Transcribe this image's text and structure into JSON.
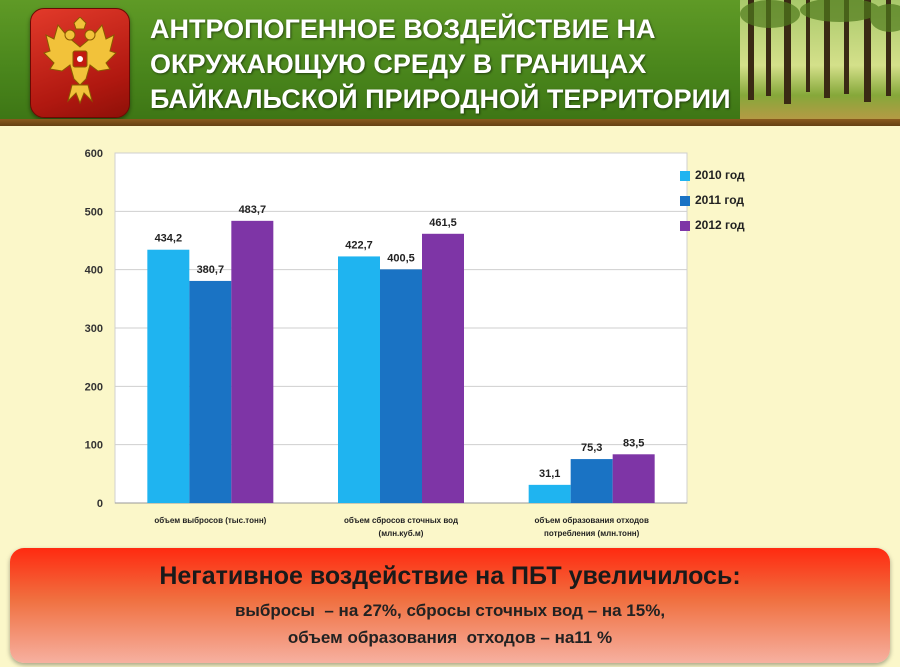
{
  "header": {
    "title_lines": [
      "АНТРОПОГЕННОЕ ВОЗДЕЙСТВИЕ НА",
      "ОКРУЖАЮЩУЮ СРЕДУ В ГРАНИЦАХ",
      "БАЙКАЛЬСКОЙ ПРИРОДНОЙ ТЕРРИТОРИИ"
    ],
    "emblem_icon": "russian-coat-of-arms-icon",
    "photo": "forest-photo"
  },
  "chart_data": {
    "type": "bar",
    "categories": [
      [
        "объем выбросов (тыс.тонн)"
      ],
      [
        "объем сбросов сточных вод",
        "(млн.куб.м)"
      ],
      [
        "объем образования отходов",
        "потребления (млн.тонн)"
      ]
    ],
    "series": [
      {
        "name": "2010 год",
        "color": "#1fb4f0",
        "values": [
          434.2,
          422.7,
          31.1
        ],
        "labels": [
          "434,2",
          "422,7",
          "31,1"
        ]
      },
      {
        "name": "2011 год",
        "color": "#1a73c4",
        "values": [
          380.7,
          400.5,
          75.3
        ],
        "labels": [
          "380,7",
          "400,5",
          "75,3"
        ]
      },
      {
        "name": "2012 год",
        "color": "#7e35a6",
        "values": [
          483.7,
          461.5,
          83.5
        ],
        "labels": [
          "483,7",
          "461,5",
          "83,5"
        ]
      }
    ],
    "ylim": [
      0,
      600
    ],
    "yticks": [
      0,
      100,
      200,
      300,
      400,
      500,
      600
    ],
    "grid": true,
    "legend_position": "right"
  },
  "banner": {
    "heading": "Негативное воздействие на ПБТ увеличилось:",
    "line1": "выбросы  – на 27%, сбросы сточных вод – на 15%,",
    "line2": "объем образования  отходов – на11 %"
  }
}
